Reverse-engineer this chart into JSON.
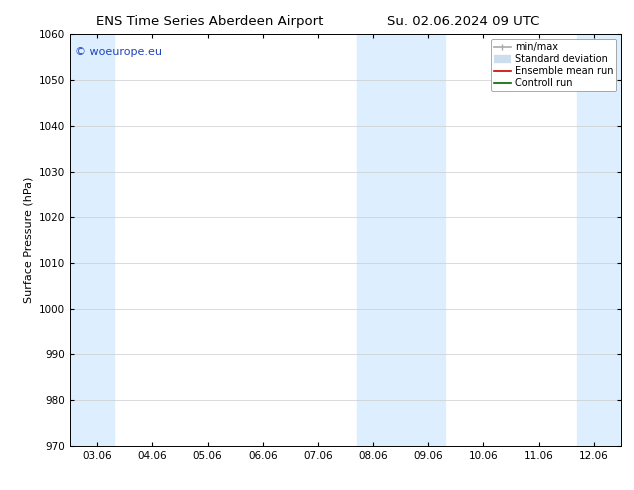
{
  "title_left": "ENS Time Series Aberdeen Airport",
  "title_right": "Su. 02.06.2024 09 UTC",
  "ylabel": "Surface Pressure (hPa)",
  "ylim": [
    970,
    1060
  ],
  "yticks": [
    970,
    980,
    990,
    1000,
    1010,
    1020,
    1030,
    1040,
    1050,
    1060
  ],
  "xtick_labels": [
    "03.06",
    "04.06",
    "05.06",
    "06.06",
    "07.06",
    "08.06",
    "09.06",
    "10.06",
    "11.06",
    "12.06"
  ],
  "xtick_positions": [
    0,
    1,
    2,
    3,
    4,
    5,
    6,
    7,
    8,
    9
  ],
  "xlim": [
    -0.5,
    9.5
  ],
  "shaded_bands": [
    {
      "x_start": -0.5,
      "x_end": 0.3,
      "color": "#ddeeff"
    },
    {
      "x_start": 4.7,
      "x_end": 6.3,
      "color": "#ddeeff"
    },
    {
      "x_start": 8.7,
      "x_end": 9.5,
      "color": "#ddeeff"
    }
  ],
  "background_color": "#ffffff",
  "plot_bg_color": "#ffffff",
  "grid_color": "#cccccc",
  "watermark_text": "© woeurope.eu",
  "watermark_color": "#2244bb",
  "legend_entries": [
    {
      "label": "min/max",
      "color": "#aaaaaa",
      "lw": 1.2
    },
    {
      "label": "Standard deviation",
      "color": "#ccddee",
      "lw": 6
    },
    {
      "label": "Ensemble mean run",
      "color": "#cc0000",
      "lw": 1.2
    },
    {
      "label": "Controll run",
      "color": "#006600",
      "lw": 1.2
    }
  ],
  "title_fontsize": 9.5,
  "ylabel_fontsize": 8,
  "tick_fontsize": 7.5,
  "legend_fontsize": 7,
  "watermark_fontsize": 8
}
